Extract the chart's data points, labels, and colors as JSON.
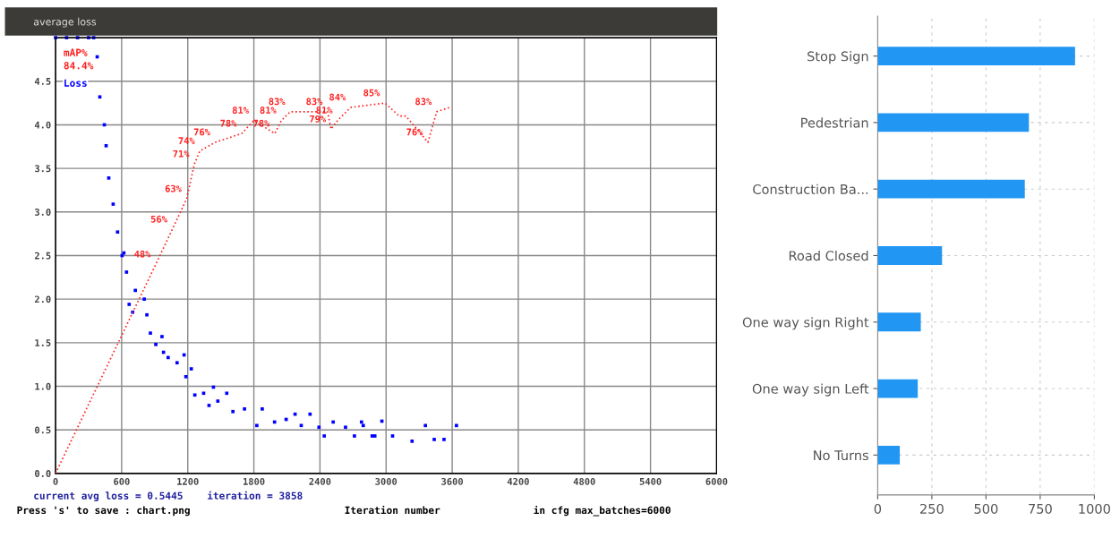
{
  "chart_data": [
    {
      "type": "scatter",
      "title": "average loss",
      "xlabel": "Iteration number",
      "xlim": [
        0,
        6000
      ],
      "xticks": [
        0,
        600,
        1200,
        1800,
        2400,
        3000,
        3600,
        4200,
        4800,
        5400,
        6000
      ],
      "ylim": [
        0,
        5
      ],
      "yticks": [
        {
          "value": 0,
          "label": "0.0"
        },
        {
          "value": 0.5,
          "label": "0.5"
        },
        {
          "value": 1,
          "label": "1.0"
        },
        {
          "value": 1.5,
          "label": "1.5"
        },
        {
          "value": 2,
          "label": "2.0"
        },
        {
          "value": 2.5,
          "label": "2.5"
        },
        {
          "value": 3,
          "label": "3.0"
        },
        {
          "value": 3.5,
          "label": "3.5"
        },
        {
          "value": 4,
          "label": "4.0"
        },
        {
          "value": 4.5,
          "label": "4.5"
        }
      ],
      "y2lim": [
        0,
        100
      ],
      "grid": true,
      "legend": false,
      "annotations": [
        "84.4%",
        "current avg loss = 0.5445    iteration = 3858",
        "Press 's' to save : chart.png",
        "in cfg max_batches=6000"
      ],
      "series": [
        {
          "name": "mAP%",
          "type": "line",
          "axis": "y2",
          "color": "#ff2020",
          "line_style": "dotted",
          "marker": "none",
          "x": [
            0,
            910,
            1060,
            1190,
            1260,
            1310,
            1450,
            1690,
            1800,
            1990,
            2050,
            2130,
            2470,
            2500,
            2560,
            2680,
            2990,
            3120,
            3180,
            3380,
            3460,
            3580
          ],
          "values": [
            0,
            48,
            56,
            63,
            71,
            74,
            76,
            78,
            81,
            78,
            81,
            83,
            83,
            79,
            81,
            84,
            85,
            82,
            82,
            76,
            83,
            84
          ],
          "value_labels": [
            null,
            "48%",
            "56%",
            "63%",
            "71%",
            "74%",
            "76%",
            "78%",
            "81%",
            "78%",
            "81%",
            "83%",
            "83%",
            "79%",
            "81%",
            "84%",
            "85%",
            null,
            null,
            "76%",
            "83%",
            null
          ]
        },
        {
          "name": "Loss",
          "type": "scatter",
          "color": "#0000ff",
          "marker": "square",
          "x": [
            0,
            100,
            200,
            300,
            346,
            378,
            402,
            443,
            459,
            483,
            523,
            563,
            604,
            620,
            644,
            668,
            700,
            724,
            805,
            829,
            861,
            910,
            966,
            980,
            1022,
            1103,
            1167,
            1183,
            1232,
            1264,
            1344,
            1393,
            1433,
            1473,
            1554,
            1610,
            1715,
            1827,
            1876,
            1988,
            2093,
            2174,
            2230,
            2310,
            2391,
            2439,
            2520,
            2632,
            2713,
            2777,
            2793,
            2874,
            2898,
            2962,
            3059,
            3236,
            3357,
            3437,
            3526,
            3639
          ],
          "values": [
            5,
            5,
            5,
            5,
            5,
            4.78,
            4.32,
            4.0,
            3.76,
            3.39,
            3.09,
            2.77,
            2.5,
            2.53,
            2.31,
            1.94,
            1.85,
            2.1,
            2.0,
            1.82,
            1.61,
            1.48,
            1.57,
            1.39,
            1.33,
            1.27,
            1.36,
            1.11,
            1.2,
            0.9,
            0.92,
            0.78,
            0.99,
            0.83,
            0.92,
            0.71,
            0.74,
            0.55,
            0.74,
            0.59,
            0.62,
            0.68,
            0.55,
            0.68,
            0.53,
            0.43,
            0.59,
            0.53,
            0.43,
            0.59,
            0.55,
            0.43,
            0.43,
            0.6,
            0.43,
            0.37,
            0.55,
            0.39,
            0.39,
            0.55
          ]
        }
      ]
    },
    {
      "type": "bar",
      "orientation": "horizontal",
      "categories": [
        "Stop Sign",
        "Pedestrian",
        "Construction Ba...",
        "Road Closed",
        "One way sign Right",
        "One way sign Left",
        "No Turns"
      ],
      "values": [
        911,
        698,
        679,
        297,
        199,
        185,
        102
      ],
      "color": "#2196f3",
      "xlim": [
        0,
        1000
      ],
      "xticks": [
        0,
        250,
        500,
        750,
        1000
      ],
      "grid": true,
      "legend": false
    }
  ]
}
